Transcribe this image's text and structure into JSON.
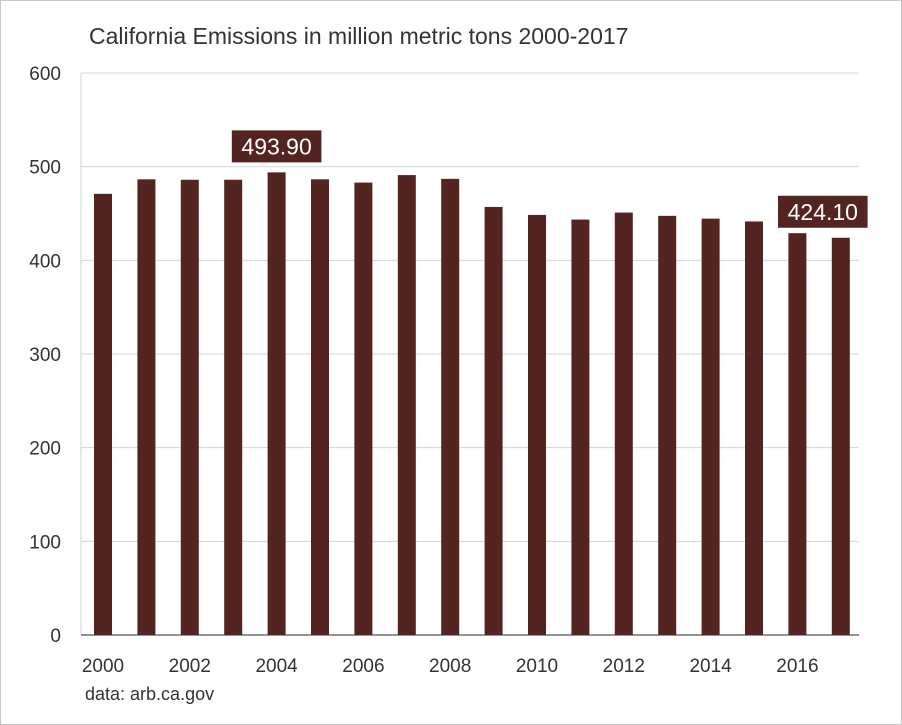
{
  "chart_data": {
    "type": "bar",
    "title": "California Emissions in million metric tons 2000-2017",
    "source": "data: arb.ca.gov",
    "xlabel": "",
    "ylabel": "",
    "categories": [
      2000,
      2001,
      2002,
      2003,
      2004,
      2005,
      2006,
      2007,
      2008,
      2009,
      2010,
      2011,
      2012,
      2013,
      2014,
      2015,
      2016,
      2017
    ],
    "values": [
      471.0,
      486.5,
      486.0,
      486.0,
      493.9,
      486.5,
      483.0,
      491.0,
      487.0,
      457.0,
      448.5,
      443.5,
      451.0,
      447.5,
      444.5,
      441.5,
      429.0,
      424.1
    ],
    "x_tick_labels": [
      "2000",
      "2002",
      "2004",
      "2006",
      "2008",
      "2010",
      "2012",
      "2014",
      "2016"
    ],
    "y_tick_labels": [
      "0",
      "100",
      "200",
      "300",
      "400",
      "500",
      "600"
    ],
    "ylim": [
      0,
      600
    ],
    "grid": true,
    "bar_color": "#542520",
    "annotations": [
      {
        "year": 2004,
        "text": "493.90"
      },
      {
        "year": 2017,
        "text": "424.10"
      }
    ]
  }
}
